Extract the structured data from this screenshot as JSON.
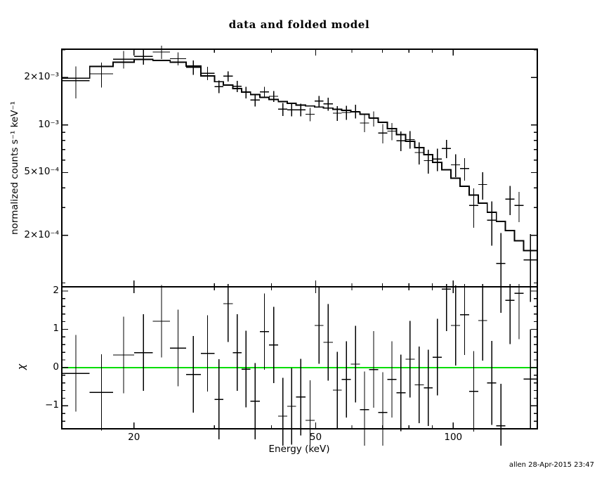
{
  "annotations": {
    "timestamp": "allen 28-Apr-2015 23:47"
  },
  "colors": {
    "foreground": "#000000",
    "background": "#ffffff",
    "zero_line": "#00dd00"
  },
  "chart_data": [
    {
      "name": "top_panel_spectrum",
      "type": "scatter",
      "title": "data and folded model",
      "xlabel": "",
      "ylabel": "normalized counts s⁻¹ keV⁻¹",
      "xscale": "log",
      "yscale": "log",
      "xlim": [
        13.9,
        152.8
      ],
      "ylim": [
        9.45e-05,
        0.00302
      ],
      "grid": false,
      "x_bin_edges_keV": [
        13.9,
        16,
        18,
        20,
        22,
        24,
        26,
        28,
        30,
        31.4,
        32.9,
        34.4,
        36.0,
        37.7,
        39.5,
        41.4,
        43.3,
        45.3,
        47.5,
        49.7,
        52.0,
        54.5,
        57.0,
        59.7,
        62.5,
        65.4,
        68.5,
        71.7,
        75.1,
        78.6,
        82.3,
        86.2,
        90.2,
        94.4,
        98.9,
        103.5,
        108.4,
        113.4,
        118.7,
        124.3,
        130.1,
        136.2,
        142.6,
        152.8
      ],
      "series": [
        {
          "name": "data",
          "style": "crosses_with_errorbars",
          "values": [
            0.00191,
            0.00211,
            0.00261,
            0.00272,
            0.0029,
            0.00263,
            0.00232,
            0.00213,
            0.00175,
            0.00204,
            0.00176,
            0.00161,
            0.00144,
            0.00162,
            0.00152,
            0.00126,
            0.00125,
            0.00125,
            0.00117,
            0.00142,
            0.00136,
            0.00119,
            0.0012,
            0.00122,
            0.00103,
            0.0011,
            0.00089,
            0.000915,
            0.000795,
            0.00081,
            0.00067,
            0.000595,
            0.00061,
            0.00071,
            0.00056,
            0.00053,
            0.00031,
            0.00042,
            0.00025,
            0.000133,
            0.00034,
            0.00031,
            0.00014
          ],
          "errors": [
            0.00044,
            0.00038,
            0.00033,
            0.00031,
            0.00028,
            0.00025,
            0.00024,
            0.000205,
            0.00016,
            0.000152,
            0.000145,
            0.000138,
            0.000133,
            0.000128,
            0.000123,
            0.00012,
            0.000116,
            0.000114,
            0.000112,
            0.000111,
            0.000128,
            0.000126,
            0.000124,
            0.000121,
            0.000129,
            0.000122,
            0.000125,
            0.000114,
            0.000113,
            0.000103,
            0.000108,
            0.000104,
            9.9e-05,
            9.4e-05,
            9.2e-05,
            8.6e-05,
            8.6e-05,
            8.3e-05,
            7.8e-05,
            7.4e-05,
            7.1e-05,
            6.7e-05,
            6.4e-05
          ]
        },
        {
          "name": "folded model",
          "style": "histogram",
          "values": [
            0.00198,
            0.00235,
            0.0025,
            0.0026,
            0.00256,
            0.0025,
            0.00236,
            0.00205,
            0.00188,
            0.00179,
            0.0017,
            0.00162,
            0.00156,
            0.0015,
            0.00145,
            0.00141,
            0.00137,
            0.00134,
            0.00132,
            0.0013,
            0.00128,
            0.00126,
            0.00124,
            0.00121,
            0.00117,
            0.00111,
            0.00104,
            0.00095,
            0.00087,
            0.00079,
            0.00072,
            0.00065,
            0.00058,
            0.00052,
            0.00046,
            0.00041,
            0.00036,
            0.00032,
            0.00028,
            0.000245,
            0.000215,
            0.000185,
            0.00016
          ]
        }
      ],
      "xticks_labeled": {
        "values": [
          20,
          50,
          100
        ],
        "labels": [
          "20",
          "50",
          "100"
        ]
      },
      "xticks_minor": [
        30,
        40,
        60,
        70,
        80,
        90
      ],
      "yticks_labeled": {
        "values": [
          0.002,
          0.001,
          0.0005,
          0.0002
        ],
        "labels": [
          "2×10⁻³",
          "10⁻³",
          "5×10⁻⁴",
          "2×10⁻⁴"
        ]
      },
      "yticks_minor": [
        0.003,
        0.0009,
        0.0008,
        0.0007,
        0.0006,
        0.0004,
        0.0003,
        0.0001
      ]
    },
    {
      "name": "bottom_panel_residuals",
      "type": "scatter",
      "title": "",
      "xlabel": "Energy (keV)",
      "ylabel": "χ",
      "xscale": "log",
      "yscale": "linear",
      "xlim": [
        13.9,
        152.8
      ],
      "ylim": [
        -1.6,
        2.11
      ],
      "grid": false,
      "series": [
        {
          "name": "chi residuals",
          "style": "crosses_with_errorbars",
          "values": [
            -0.15,
            -0.65,
            0.33,
            0.39,
            1.21,
            0.51,
            -0.18,
            0.37,
            -0.83,
            1.67,
            0.39,
            -0.04,
            -0.88,
            0.94,
            0.59,
            -1.27,
            -1.01,
            -0.77,
            -1.38,
            1.1,
            0.66,
            -0.59,
            -0.31,
            0.09,
            -1.1,
            -0.05,
            -1.17,
            -0.31,
            -0.66,
            0.22,
            -0.45,
            -0.53,
            0.27,
            2.05,
            1.1,
            1.38,
            -0.62,
            1.23,
            -0.4,
            -1.52,
            1.76,
            1.94,
            -0.3
          ],
          "errors": [
            1.0,
            1.0,
            1.0,
            1.0,
            0.95,
            1.0,
            1.0,
            1.0,
            1.05,
            1.0,
            1.0,
            1.0,
            1.0,
            1.0,
            1.0,
            1.0,
            1.0,
            1.0,
            1.05,
            1.0,
            1.0,
            1.0,
            1.0,
            1.0,
            1.0,
            1.0,
            1.05,
            1.0,
            1.0,
            1.0,
            1.0,
            1.0,
            1.0,
            1.1,
            1.05,
            1.05,
            1.05,
            1.05,
            1.1,
            1.1,
            1.15,
            1.2,
            1.3
          ]
        },
        {
          "name": "zero line",
          "style": "hline",
          "y": 0,
          "color": "#00dd00"
        }
      ],
      "xticks_labeled": {
        "values": [
          20,
          50,
          100
        ],
        "labels": [
          "20",
          "50",
          "100"
        ]
      },
      "xticks_minor": [
        30,
        40,
        60,
        70,
        80,
        90
      ],
      "yticks_labeled": {
        "values": [
          2,
          1,
          0,
          -1
        ],
        "labels": [
          "2",
          "1",
          "0",
          "−1"
        ]
      },
      "yticks_minor": [
        -1.4,
        -1.2,
        -0.8,
        -0.6,
        -0.4,
        -0.2,
        0.2,
        0.4,
        0.6,
        0.8,
        1.2,
        1.4,
        1.6,
        1.8
      ]
    }
  ]
}
